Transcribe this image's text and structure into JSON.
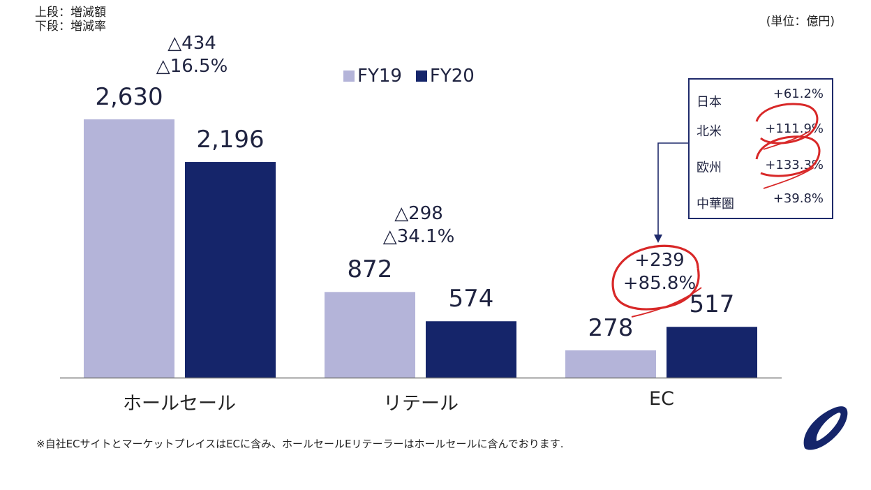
{
  "notes": {
    "line1": "上段：増減額",
    "line2": "下段：増減率"
  },
  "unit": "(単位：億円)",
  "footnote": "※自社ECサイトとマーケットプレイスはECに含み、ホールセールEリテーラーはホールセールに含んでおります.",
  "colors": {
    "fy19": "#b4b4d9",
    "fy20": "#15256a",
    "annotation": "#d82828",
    "axis": "#777777"
  },
  "chart_data": {
    "type": "bar",
    "categories": [
      "ホールセール",
      "リテール",
      "EC"
    ],
    "series": [
      {
        "name": "FY19",
        "values": [
          2630,
          872,
          278
        ],
        "labels": [
          "2,630",
          "872",
          "278"
        ]
      },
      {
        "name": "FY20",
        "values": [
          2196,
          574,
          517
        ],
        "labels": [
          "2,196",
          "574",
          "517"
        ]
      }
    ],
    "differences": [
      {
        "amount": "△434",
        "rate": "△16.5%"
      },
      {
        "amount": "△298",
        "rate": "△34.1%"
      },
      {
        "amount": "+239",
        "rate": "+85.8%"
      }
    ],
    "ylim": [
      0,
      2630
    ],
    "legend_position": "top-center",
    "ec_regions": [
      {
        "name": "日本",
        "value": "+61.2%"
      },
      {
        "name": "北米",
        "value": "+111.9%"
      },
      {
        "name": "欧州",
        "value": "+133.3%"
      },
      {
        "name": "中華圏",
        "value": "+39.8%"
      }
    ]
  }
}
